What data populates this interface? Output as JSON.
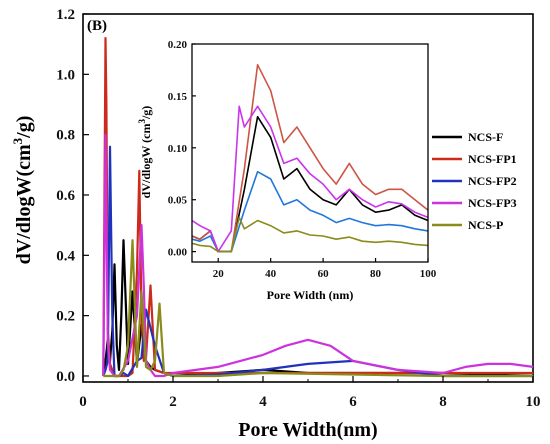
{
  "panel_label": "(B)",
  "chart_data": [
    {
      "type": "line",
      "xlabel": "Pore Width(nm)",
      "ylabel_main": "dV/dlogW(cm",
      "ylabel_sup": "3",
      "ylabel_end": "/g)",
      "xlim": [
        0,
        10
      ],
      "ylim": [
        -0.02,
        1.2
      ],
      "xticks": [
        0,
        2,
        4,
        6,
        8,
        10
      ],
      "yticks": [
        0.0,
        0.2,
        0.4,
        0.6,
        0.8,
        1.0,
        1.2
      ],
      "xtick_labels": [
        "0",
        "2",
        "4",
        "6",
        "8",
        "10"
      ],
      "ytick_labels": [
        "0.0",
        "0.2",
        "0.4",
        "0.6",
        "0.8",
        "1.0",
        "1.2"
      ],
      "legend_position": "right",
      "series": [
        {
          "name": "NCS-F",
          "color": "#000000",
          "x": [
            0.45,
            0.5,
            0.55,
            0.6,
            0.65,
            0.7,
            0.75,
            0.8,
            0.85,
            0.9,
            1.0,
            1.1,
            1.2,
            1.3,
            1.4,
            1.5,
            1.6,
            1.8,
            2.0,
            3.0,
            4.0,
            5.0,
            6.0,
            8.0,
            10.0
          ],
          "y": [
            0.0,
            0.05,
            0.12,
            0.05,
            0.15,
            0.37,
            0.1,
            0.02,
            0.2,
            0.45,
            0.04,
            0.28,
            0.04,
            0.17,
            0.05,
            0.03,
            0.02,
            0.01,
            0.0,
            0.01,
            0.02,
            0.01,
            0.01,
            0.01,
            0.0
          ]
        },
        {
          "name": "NCS-FP1",
          "color": "#cc2a1a",
          "x": [
            0.45,
            0.5,
            0.52,
            0.55,
            0.6,
            0.65,
            0.7,
            0.8,
            0.9,
            1.0,
            1.1,
            1.2,
            1.25,
            1.3,
            1.35,
            1.4,
            1.5,
            1.6,
            1.8,
            2.0,
            4.0,
            6.0,
            8.0,
            10.0
          ],
          "y": [
            0.0,
            1.12,
            0.9,
            0.15,
            0.04,
            0.02,
            0.0,
            0.0,
            0.0,
            0.0,
            0.01,
            0.35,
            0.68,
            0.2,
            0.05,
            0.06,
            0.3,
            0.02,
            0.01,
            0.01,
            0.01,
            0.01,
            0.01,
            0.01
          ]
        },
        {
          "name": "NCS-FP2",
          "color": "#2233bb",
          "x": [
            0.45,
            0.5,
            0.55,
            0.6,
            0.65,
            0.7,
            0.8,
            0.9,
            1.0,
            1.2,
            1.3,
            1.4,
            1.6,
            1.8,
            2.0,
            3.0,
            4.0,
            5.0,
            6.0,
            7.0,
            8.0,
            10.0
          ],
          "y": [
            0.0,
            0.02,
            0.05,
            0.76,
            0.2,
            0.0,
            0.0,
            0.01,
            0.0,
            0.05,
            0.06,
            0.22,
            0.1,
            0.01,
            0.0,
            0.005,
            0.02,
            0.04,
            0.05,
            0.02,
            0.0,
            0.0
          ]
        },
        {
          "name": "NCS-FP3",
          "color": "#cc33dd",
          "x": [
            0.45,
            0.5,
            0.55,
            0.6,
            0.7,
            0.8,
            1.0,
            1.2,
            1.3,
            1.35,
            1.4,
            1.5,
            1.6,
            1.8,
            2.0,
            3.0,
            4.0,
            4.5,
            5.0,
            5.5,
            6.0,
            7.0,
            8.0,
            8.5,
            9.0,
            9.5,
            10.0
          ],
          "y": [
            0.0,
            0.8,
            0.12,
            0.02,
            0.0,
            0.0,
            0.05,
            0.2,
            0.5,
            0.3,
            0.05,
            0.02,
            0.0,
            0.0,
            0.01,
            0.03,
            0.07,
            0.1,
            0.12,
            0.1,
            0.05,
            0.02,
            0.01,
            0.03,
            0.04,
            0.04,
            0.03
          ]
        },
        {
          "name": "NCS-P",
          "color": "#8b8b1a",
          "x": [
            0.45,
            0.5,
            0.6,
            0.7,
            0.8,
            0.9,
            1.0,
            1.1,
            1.2,
            1.3,
            1.4,
            1.5,
            1.6,
            1.7,
            1.8,
            2.0,
            3.0,
            4.0,
            6.0,
            8.0,
            10.0
          ],
          "y": [
            0.0,
            0.0,
            0.0,
            0.0,
            0.0,
            0.02,
            0.1,
            0.45,
            0.03,
            0.28,
            0.03,
            0.02,
            0.05,
            0.24,
            0.01,
            0.0,
            0.0,
            0.01,
            0.005,
            0.0,
            0.0
          ]
        }
      ]
    },
    {
      "type": "line",
      "role": "inset",
      "xlabel": "Pore Width (nm)",
      "ylabel_main": "dV/dlogW (cm",
      "ylabel_sup": "3",
      "ylabel_end": "/g)",
      "xlim": [
        10,
        100
      ],
      "ylim": [
        -0.01,
        0.2
      ],
      "xticks": [
        20,
        40,
        60,
        80,
        100
      ],
      "yticks": [
        0.0,
        0.05,
        0.1,
        0.15,
        0.2
      ],
      "xtick_labels": [
        "20",
        "40",
        "60",
        "80",
        "100"
      ],
      "ytick_labels": [
        "0.00",
        "0.05",
        "0.10",
        "0.15",
        "0.20"
      ],
      "series": [
        {
          "name": "NCS-F",
          "color": "#000000",
          "x": [
            10,
            13,
            17,
            20,
            25,
            30,
            35,
            40,
            45,
            50,
            55,
            60,
            65,
            70,
            75,
            80,
            85,
            90,
            95,
            100
          ],
          "y": [
            0.015,
            0.012,
            0.02,
            0.0,
            0.0,
            0.06,
            0.13,
            0.11,
            0.07,
            0.08,
            0.06,
            0.05,
            0.045,
            0.06,
            0.045,
            0.038,
            0.04,
            0.045,
            0.035,
            0.03
          ]
        },
        {
          "name": "NCS-FP1",
          "color": "#cc5544",
          "x": [
            10,
            13,
            17,
            20,
            25,
            30,
            35,
            40,
            45,
            50,
            55,
            60,
            65,
            70,
            75,
            80,
            85,
            90,
            95,
            100
          ],
          "y": [
            0.015,
            0.012,
            0.02,
            0.0,
            0.0,
            0.08,
            0.18,
            0.155,
            0.105,
            0.12,
            0.1,
            0.08,
            0.065,
            0.085,
            0.065,
            0.055,
            0.06,
            0.06,
            0.05,
            0.04
          ]
        },
        {
          "name": "NCS-FP2",
          "color": "#2277dd",
          "x": [
            10,
            13,
            17,
            20,
            25,
            30,
            35,
            40,
            45,
            50,
            55,
            60,
            65,
            70,
            75,
            80,
            85,
            90,
            95,
            100
          ],
          "y": [
            0.012,
            0.01,
            0.015,
            0.0,
            0.0,
            0.04,
            0.077,
            0.07,
            0.045,
            0.05,
            0.04,
            0.035,
            0.028,
            0.032,
            0.028,
            0.025,
            0.026,
            0.025,
            0.022,
            0.02
          ]
        },
        {
          "name": "NCS-FP3",
          "color": "#cc33ee",
          "x": [
            10,
            13,
            17,
            20,
            25,
            28,
            30,
            35,
            40,
            45,
            50,
            55,
            60,
            65,
            70,
            75,
            80,
            85,
            90,
            95,
            100
          ],
          "y": [
            0.03,
            0.025,
            0.02,
            0.0,
            0.02,
            0.14,
            0.12,
            0.14,
            0.12,
            0.085,
            0.09,
            0.075,
            0.065,
            0.05,
            0.06,
            0.05,
            0.043,
            0.048,
            0.046,
            0.038,
            0.033
          ]
        },
        {
          "name": "NCS-P",
          "color": "#8b8b1a",
          "x": [
            10,
            13,
            17,
            20,
            25,
            28,
            30,
            35,
            40,
            45,
            50,
            55,
            60,
            65,
            70,
            75,
            80,
            85,
            90,
            95,
            100
          ],
          "y": [
            0.008,
            0.006,
            0.005,
            0.0,
            0.0,
            0.033,
            0.022,
            0.03,
            0.025,
            0.018,
            0.02,
            0.016,
            0.015,
            0.012,
            0.014,
            0.01,
            0.009,
            0.01,
            0.009,
            0.007,
            0.006
          ]
        }
      ]
    }
  ]
}
